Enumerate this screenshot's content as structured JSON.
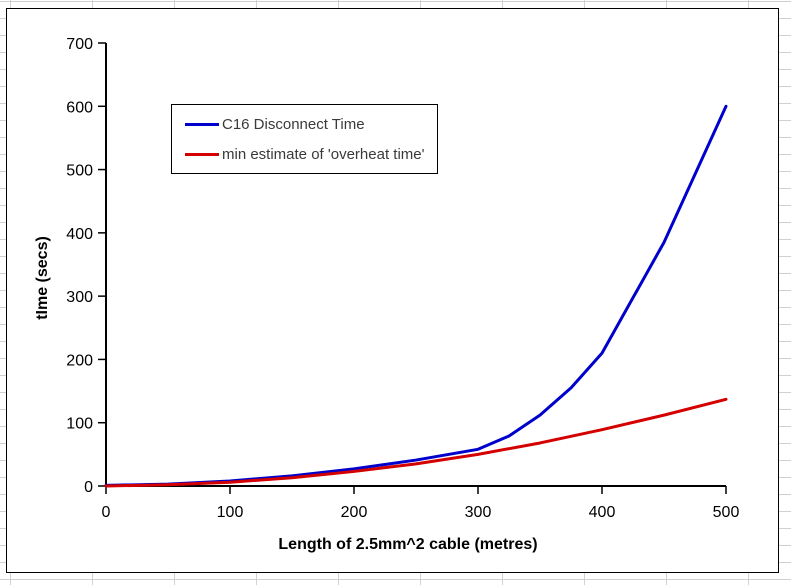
{
  "window": {
    "description": "spreadsheet worksheet with embedded line chart"
  },
  "colors": {
    "series1_blue": "#0000CC",
    "series2_red": "#D40000",
    "axis": "#000000",
    "grid_line": "#D0D0D0",
    "legend_text": "#3A3A3A",
    "chart_background": "#FFFFFF"
  },
  "chart_data": {
    "type": "line",
    "title": "",
    "xlabel": "Length of 2.5mm^2 cable (metres)",
    "ylabel": "tIme (secs)",
    "xlim": [
      0,
      500
    ],
    "ylim": [
      0,
      700
    ],
    "xticks": [
      0,
      100,
      200,
      300,
      400,
      500
    ],
    "yticks": [
      0,
      100,
      200,
      300,
      400,
      500,
      600,
      700
    ],
    "grid": false,
    "legend_position": "upper-left-inside",
    "series": [
      {
        "name": "C16 Disconnect Time",
        "color": "#0000CC",
        "x": [
          0,
          50,
          100,
          150,
          200,
          250,
          300,
          325,
          350,
          375,
          400,
          450,
          500
        ],
        "y": [
          1,
          3,
          8,
          16,
          27,
          41,
          58,
          79,
          112,
          155,
          210,
          385,
          600
        ]
      },
      {
        "name": "min estimate of 'overheat time'",
        "color": "#D40000",
        "x": [
          0,
          50,
          100,
          150,
          200,
          250,
          300,
          350,
          400,
          450,
          500
        ],
        "y": [
          0,
          2,
          6,
          13,
          23,
          35,
          50,
          68,
          89,
          112,
          137
        ]
      }
    ]
  }
}
